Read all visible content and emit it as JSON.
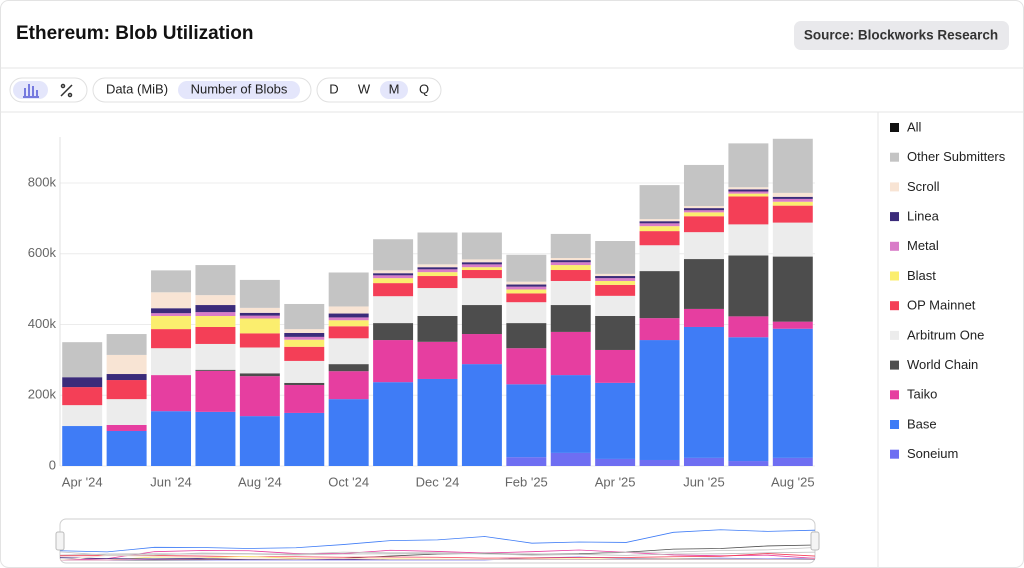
{
  "header": {
    "title": "Ethereum: Blob Utilization",
    "source": "Source: Blockworks Research"
  },
  "toolbar": {
    "metric_options": [
      "Data (MiB)",
      "Number of Blobs"
    ],
    "selected_metric": "Number of Blobs",
    "period_options": [
      "D",
      "W",
      "M",
      "Q"
    ],
    "selected_period": "M"
  },
  "chart_data": {
    "type": "stacked_bar",
    "categories": [
      "Apr '24",
      null,
      "Jun '24",
      null,
      "Aug '24",
      null,
      "Oct '24",
      null,
      "Dec '24",
      null,
      "Feb '25",
      null,
      "Apr '25",
      null,
      "Jun '25",
      null,
      "Aug '25"
    ],
    "ylim": [
      0,
      930000
    ],
    "yticks": [
      0,
      {
        "value": 200000,
        "label": "200k"
      },
      {
        "value": 400000,
        "label": "400k"
      },
      {
        "value": 600000,
        "label": "600k"
      },
      {
        "value": 800000,
        "label": "800k"
      }
    ],
    "grid": true,
    "series": [
      {
        "name": "Soneium",
        "color": "#6e6ef2",
        "values": [
          0,
          0,
          0,
          0,
          0,
          0,
          0,
          0,
          0,
          0,
          25000,
          37000,
          20000,
          17000,
          23000,
          14000,
          23000
        ]
      },
      {
        "name": "Base",
        "color": "#3f7cf6",
        "values": [
          113000,
          99000,
          155000,
          153000,
          141000,
          150000,
          189000,
          237000,
          246000,
          288000,
          206000,
          220000,
          215000,
          339000,
          370000,
          350000,
          365000
        ]
      },
      {
        "name": "Taiko",
        "color": "#e63ea0",
        "values": [
          0,
          17000,
          102000,
          116000,
          113000,
          79000,
          79000,
          119000,
          105000,
          85000,
          102000,
          122000,
          93000,
          62000,
          51000,
          59000,
          20000
        ]
      },
      {
        "name": "World Chain",
        "color": "#4d4d4d",
        "values": [
          0,
          0,
          0,
          3000,
          8000,
          6000,
          20000,
          48000,
          73000,
          82000,
          71000,
          76000,
          96000,
          133000,
          141000,
          172000,
          184000
        ]
      },
      {
        "name": "Arbitrum One",
        "color": "#ececec",
        "values": [
          59000,
          73000,
          76000,
          73000,
          73000,
          62000,
          73000,
          76000,
          79000,
          76000,
          59000,
          68000,
          57000,
          73000,
          76000,
          88000,
          96000
        ]
      },
      {
        "name": "OP Mainnet",
        "color": "#f43f57",
        "values": [
          51000,
          54000,
          54000,
          48000,
          40000,
          40000,
          34000,
          37000,
          34000,
          23000,
          25000,
          31000,
          31000,
          40000,
          45000,
          79000,
          48000
        ]
      },
      {
        "name": "Blast",
        "color": "#fbee6e",
        "values": [
          0,
          0,
          37000,
          31000,
          42000,
          20000,
          17000,
          14000,
          11000,
          8000,
          11000,
          14000,
          11000,
          14000,
          11000,
          8000,
          11000
        ]
      },
      {
        "name": "Metal",
        "color": "#d97cc8",
        "values": [
          0,
          0,
          8000,
          11000,
          8000,
          8000,
          8000,
          8000,
          8000,
          8000,
          8000,
          8000,
          8000,
          8000,
          6000,
          6000,
          8000
        ]
      },
      {
        "name": "Linea",
        "color": "#3b2b7a",
        "values": [
          28000,
          17000,
          14000,
          20000,
          8000,
          11000,
          11000,
          6000,
          6000,
          6000,
          6000,
          6000,
          6000,
          6000,
          6000,
          6000,
          6000
        ]
      },
      {
        "name": "Scroll",
        "color": "#f8e4d4",
        "values": [
          0,
          54000,
          45000,
          28000,
          14000,
          11000,
          20000,
          8000,
          8000,
          8000,
          8000,
          6000,
          6000,
          6000,
          6000,
          6000,
          11000
        ]
      },
      {
        "name": "Other Submitters",
        "color": "#c4c4c4",
        "values": [
          99000,
          59000,
          62000,
          85000,
          79000,
          71000,
          96000,
          88000,
          90000,
          76000,
          76000,
          68000,
          93000,
          96000,
          116000,
          124000,
          153000
        ]
      },
      {
        "name": "All",
        "color": "#111111"
      }
    ]
  }
}
